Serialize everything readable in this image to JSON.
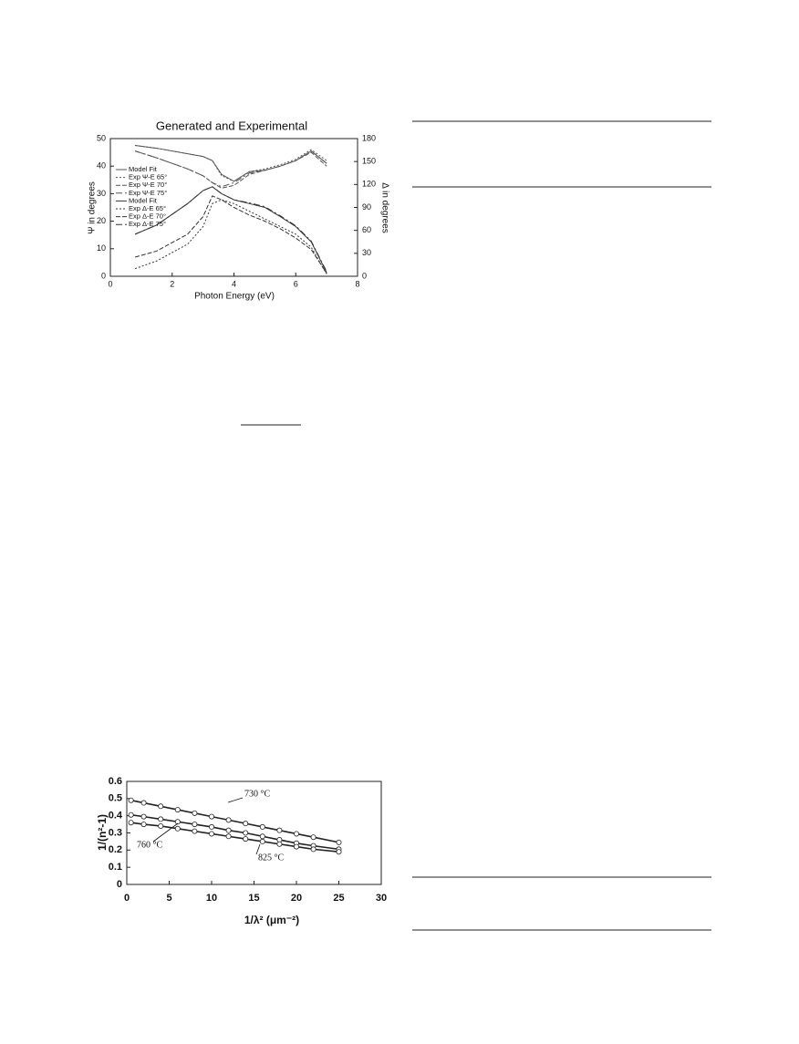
{
  "chart_data": [
    {
      "type": "line",
      "title": "Generated and Experimental",
      "x_label": "Photon Energy (eV)",
      "y_label": "Ψ in degrees",
      "y2_label": "Δ in degrees",
      "x": [
        0.8,
        1.5,
        2.5,
        3.0,
        3.3,
        3.6,
        4.0,
        4.5,
        5.0,
        5.5,
        6.0,
        6.5,
        7.0
      ],
      "series": [
        {
          "name": "Model Fit",
          "color": "#555555",
          "values": [
            47.5,
            46.5,
            44.5,
            43.5,
            42,
            37,
            34.5,
            38,
            38.5,
            40,
            42,
            45.5,
            41
          ]
        },
        {
          "name": "Exp Ψ-E 65°",
          "color": "#555555",
          "values": [
            47.5,
            46.5,
            44.5,
            43.5,
            42,
            36.5,
            34.5,
            38,
            39,
            40.5,
            42.5,
            46,
            42
          ]
        },
        {
          "name": "Exp Ψ-E 70°",
          "color": "#555555",
          "values": [
            45.5,
            43,
            39,
            36.5,
            34,
            32,
            33,
            37,
            38.5,
            40,
            42,
            45,
            40
          ]
        },
        {
          "name": "Exp Ψ-E 75°",
          "color": "#555555",
          "values": [
            45.5,
            43,
            39,
            36.5,
            34,
            32.5,
            34,
            37.5,
            38.5,
            40,
            42,
            45.5,
            41
          ]
        },
        {
          "name": "Model Fit",
          "color": "#333333",
          "axis": "y2",
          "values": [
            55,
            67,
            95,
            112,
            117,
            108,
            100,
            95,
            90,
            78,
            65,
            45,
            5
          ]
        },
        {
          "name": "Exp Δ-E 65°",
          "color": "#333333",
          "axis": "y2",
          "values": [
            10,
            20,
            42,
            65,
            95,
            100,
            95,
            85,
            75,
            65,
            55,
            38,
            3
          ]
        },
        {
          "name": "Exp Δ-E 70°",
          "color": "#333333",
          "axis": "y2",
          "values": [
            25,
            33,
            55,
            78,
            105,
            100,
            90,
            80,
            72,
            62,
            50,
            35,
            4
          ]
        },
        {
          "name": "Exp Δ-E 75°",
          "color": "#333333",
          "axis": "y2",
          "values": [
            55,
            67,
            95,
            112,
            117,
            108,
            100,
            96,
            91,
            79,
            66,
            46,
            6
          ]
        }
      ],
      "xlim": [
        0,
        8
      ],
      "xticks": [
        0,
        2,
        4,
        6,
        8
      ],
      "ylim": [
        0,
        50
      ],
      "yticks": [
        0,
        10,
        20,
        30,
        40,
        50
      ],
      "y2lim": [
        0,
        180
      ],
      "y2ticks": [
        0,
        30,
        60,
        90,
        120,
        150,
        180
      ],
      "legend": "upper left"
    },
    {
      "type": "scatter",
      "x_label": "1/λ² (μm⁻²)",
      "y_label": "1/(n²-1)",
      "x": [
        0.5,
        2,
        4,
        6,
        8,
        10,
        12,
        14,
        16,
        18,
        20,
        22,
        25
      ],
      "series": [
        {
          "name": "730 °C",
          "color": "#222222",
          "values": [
            0.49,
            0.475,
            0.455,
            0.435,
            0.415,
            0.395,
            0.375,
            0.355,
            0.335,
            0.315,
            0.295,
            0.275,
            0.245
          ]
        },
        {
          "name": "760 °C",
          "color": "#222222",
          "values": [
            0.405,
            0.395,
            0.38,
            0.365,
            0.35,
            0.335,
            0.315,
            0.3,
            0.28,
            0.26,
            0.24,
            0.225,
            0.205
          ]
        },
        {
          "name": "825 °C",
          "color": "#222222",
          "values": [
            0.36,
            0.35,
            0.34,
            0.325,
            0.31,
            0.295,
            0.28,
            0.265,
            0.25,
            0.235,
            0.22,
            0.205,
            0.19
          ]
        }
      ],
      "xlim": [
        0,
        30
      ],
      "xticks": [
        0,
        5,
        10,
        15,
        20,
        25,
        30
      ],
      "ylim": [
        0,
        0.6
      ],
      "yticks": [
        0,
        0.1,
        0.2,
        0.3,
        0.4,
        0.5,
        0.6
      ]
    }
  ]
}
